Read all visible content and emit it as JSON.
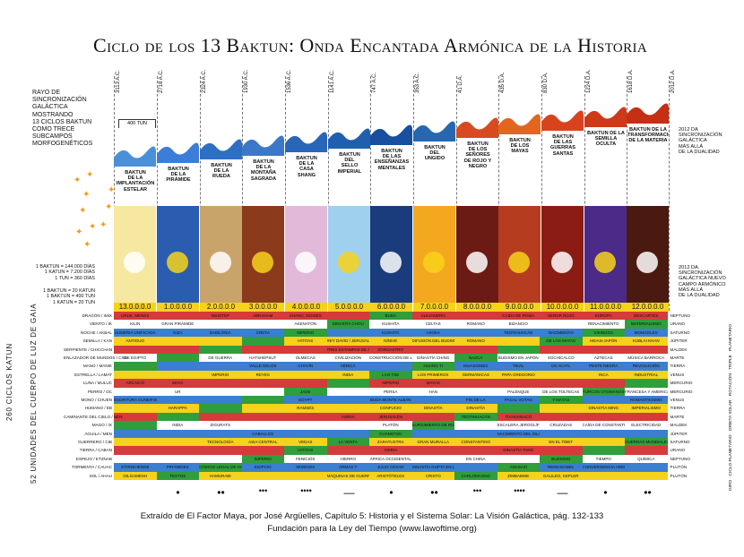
{
  "title": "Ciclo de los 13 Baktun: Onda Encantada Armónica de la Historia",
  "side_note": [
    "RAYO DE",
    "SINCRONIZACIÓN",
    "GALÁCTICA",
    "MOSTRANDO",
    "13 CICLOS BAKTUN",
    "COMO TRECE",
    "SUBCAMPOS",
    "MORFOGENÉTICOS"
  ],
  "scale_top": [
    "1 BAKTUN = 144.000 DÍAS",
    "1 KATUN = 7.200 DÍAS",
    "1 TUN = 360 DÍAS"
  ],
  "scale_bottom": [
    "1 BAKTUN = 20 KATUN",
    "1 BAKTUN = 400 TUN",
    "1 KATUN = 20 TUN"
  ],
  "tun_box": "400 TUN",
  "right_note_top": [
    "2012 DA",
    "SINCRONIZACIÓN",
    "GALÁCTICA",
    "MÁS ALLÁ",
    "DE LA DUALIDAD"
  ],
  "right_note_mid": [
    "2012 DA.",
    "SINCRONIZACIÓN",
    "GALÁCTICA NUEVO",
    "CAMPO ARMÓNICO",
    "MÁS ALLÁ",
    "DE LA DUALIDAD"
  ],
  "vertical_left": "260 CICLOS KATUN",
  "vertical_left2": "52 UNIDADES DEL CUERPO DE LUZ DE GAIA",
  "vertical_right": "GIRO · CICLO PLANETARIO · ORBITA SOLAR · ROTACIÓN · TRIPLE · PLANETARIO",
  "dates": [
    "3113 A.C.",
    "2718 A.C.",
    "2324 A.C.",
    "1930 A.C.",
    "1536 A.C.",
    "1141 A.C.",
    "747 A.C.",
    "353 A.C.",
    "41 D.A.",
    "435 D.A.",
    "830 D.A.",
    "1224 D.A.",
    "1618 D.A.",
    "2012 D.A."
  ],
  "baktuns": [
    {
      "name": [
        "BAKTUN",
        "DE LA",
        "IMPLANTACIÓN",
        "ESTELAR"
      ],
      "num": "13.0.0.0.0",
      "wave": "#4a90d9",
      "bg": "#f6e8a0"
    },
    {
      "name": [
        "BAKTUN",
        "DE LA",
        "PIRÁMIDE"
      ],
      "num": "1.0.0.0.0",
      "wave": "#3b7dd8",
      "bg": "#2a5db0"
    },
    {
      "name": [
        "BAKTUN",
        "DE LA",
        "RUEDA"
      ],
      "num": "2.0.0.0.0",
      "wave": "#2d6fc4",
      "bg": "#c9a46a"
    },
    {
      "name": [
        "BAKTUN",
        "DE LA",
        "MONTAÑA",
        "SAGRADA"
      ],
      "num": "3.0.0.0.0",
      "wave": "#3d78c8",
      "bg": "#8b3a1c"
    },
    {
      "name": [
        "BAKTUN",
        "DE LA",
        "CASA",
        "SHANG"
      ],
      "num": "4.0.0.0.0",
      "wave": "#2a66b8",
      "bg": "#e2b9d8"
    },
    {
      "name": [
        "BAKTUN",
        "DEL",
        "SELLO",
        "IMPERIAL"
      ],
      "num": "5.0.0.0.0",
      "wave": "#1e5fb0",
      "bg": "#9fd0ee"
    },
    {
      "name": [
        "BAKTUN",
        "DE LAS",
        "ENSEÑANZAS",
        "MENTALES"
      ],
      "num": "6.0.0.0.0",
      "wave": "#184f9e",
      "bg": "#1a3c7c"
    },
    {
      "name": [
        "BAKTUN",
        "DEL",
        "UNGIDO"
      ],
      "num": "7.0.0.0.0",
      "wave": "#2766b0",
      "bg": "#f4a820"
    },
    {
      "name": [
        "BAKTUN",
        "DE LOS",
        "SEÑORES",
        "DE ROJO Y NEGRO"
      ],
      "num": "8.0.0.0.0",
      "wave": "#d84a1f",
      "bg": "#6b1a14"
    },
    {
      "name": [
        "BAKTUN",
        "DE LOS",
        "MAYAS"
      ],
      "num": "9.0.0.0.0",
      "wave": "#e2661f",
      "bg": "#b63c20"
    },
    {
      "name": [
        "BAKTUN",
        "DE LAS GUERRAS",
        "SANTAS"
      ],
      "num": "10.0.0.0.0",
      "wave": "#d8431e",
      "bg": "#8a1c14"
    },
    {
      "name": [
        "BAKTUN DE LA",
        "SEMILLA",
        "OCULTA"
      ],
      "num": "11.0.0.0.0",
      "wave": "#cc3a18",
      "bg": "#4b2a88"
    },
    {
      "name": [
        "BAKTUN DE LA",
        "TRANSFORMACIÓN",
        "DE LA MATERIA"
      ],
      "num": "12.0.0.0.0",
      "wave": "#c52f14",
      "bg": "#4a1a10"
    }
  ],
  "days": [
    "DRAGÓN / IMIX",
    "VIENTO / IK",
    "NOCHE / AKBAL",
    "SEMILLA / KAN",
    "SERPIENTE / CHICCHAN",
    "ENLAZADOR DE MUNDOS / CIMI",
    "MANO / MANIK",
    "ESTRELLA / LAMAT",
    "LUNA / MULUC",
    "PERRO / OC",
    "MONO / CHUEN",
    "HUMANO / EB",
    "CAMINANTE DEL CIELO / BEN",
    "MAGO / IX",
    "ÁGUILA / MEN",
    "GUERRERO / CIB",
    "TIERRA / CABAN",
    "ESPEJO / ETZNAB",
    "TORMENTA / CAUAC",
    "SOL / AHAU"
  ],
  "planets": [
    "NEPTUNO",
    "URANO",
    "SATURNO",
    "JÚPITER",
    "MALDEK",
    "MARTE",
    "TIERRA",
    "VENUS",
    "MERCURIO",
    "MERCURIO",
    "VENUS",
    "TIERRA",
    "MARTE",
    "MALDEK",
    "JÚPITER",
    "SATURNO",
    "URANO",
    "NEPTUNO",
    "PLUTÓN",
    "PLUTÓN"
  ],
  "table": [
    [
      "",
      "URUK, MENES",
      "",
      "IMHOTEP",
      "ABRAHAM",
      "SHANG, MOISÉS",
      "",
      "BUDA",
      "ALEJANDRO",
      "",
      "CAIDA DE ROMA",
      "SEÑOR ROJO",
      "EUROPA",
      "DESCARTES"
    ],
    [
      "",
      "KILIN",
      "GRAN PIRÁMIDE",
      "",
      "",
      "AKENATÓN",
      "DINASTÍA CHOU",
      "KUSHITA",
      "CELTAS",
      "ROMANO",
      "BIZANCIO",
      "",
      "RENACIMIENTO",
      "MATERIALISMO"
    ],
    [
      "",
      "SUMERIA UNIFICADA",
      "GIZA",
      "BABILONIA",
      "CRETA",
      "IMPERIO",
      "",
      "KUSHITA",
      "ASOKA",
      "",
      "TEOTIHUACÁN",
      "NACIMIENTO",
      "VIKINGOS",
      "MONGOLES",
      "CIENTÍFICO"
    ],
    [
      "",
      "ANTIGUO",
      "",
      "",
      "",
      "HITITAS",
      "REY DAVID / JERUSALÉN",
      "NÍNIVE",
      "DIFUSIÓN DEL BUDISMO",
      "ROMANO",
      "",
      "DE LOS MAYAS",
      "HEIAN-JAPÓN",
      "KUBLAI KHAN",
      "DINASTÍA CH'ING"
    ],
    [
      "",
      "",
      "",
      "",
      "",
      "",
      "TRES ESTAMPAS DE AHÚ",
      "ZOROASTRO",
      "",
      "",
      "",
      "",
      "",
      "",
      ""
    ],
    [
      "",
      "DE EGIPTO",
      "",
      "DE GUERRA",
      "HATSHEPSUT",
      "OLMECAS",
      "CIVILIZACIÓN",
      "CONSTRUCCIÓN DE LA MURALLA",
      "DINASTÍA CHING",
      "NAZCA",
      "BUDISMO EN JAPÓN",
      "XOCHICALCO",
      "AZTECAS",
      "MÚSICA BARROCA"
    ],
    [
      "",
      "",
      "",
      "",
      "VALLE DELOS",
      "CHAVÍN",
      "VÉDICA",
      "",
      "HUANG TI",
      "INVASIONES",
      "TIKAL",
      "CE ACATL",
      "PESTE NEGRA",
      "REVOLUCIÓN"
    ],
    [
      "",
      "",
      "",
      "IMPERIO",
      "REYES",
      "",
      "INDIA",
      "LAO TSE",
      "LOS PRIMEROS",
      "GERMÁNICAS",
      "PAPA GREGORIO",
      "",
      "INCA",
      "INDUSTRIAL"
    ],
    [
      "",
      "ARCAICO",
      "MAYA",
      "",
      "",
      "",
      "",
      "IMPERIO",
      "MAYAS",
      "",
      "",
      "",
      "",
      ""
    ],
    [
      "",
      "",
      "UR",
      "",
      "",
      "JADE",
      "",
      "PERSA",
      "HAN",
      "",
      "PALENQUE",
      "DE LOS TOLTECAS",
      "TURCOS OTOMANOS",
      "FRANCESA Y AMERICANA"
    ],
    [
      "",
      "ESCRITURA CUNEIFORME",
      "",
      "",
      "",
      "EGYPT",
      "",
      "BUDA MONTE ALBÁN",
      "",
      "FIN DE LA",
      "PACAL VOTAN",
      "Y MAYAS",
      "",
      "ROMANTICISMO"
    ],
    [
      "",
      "",
      "HARAPPA",
      "",
      "",
      "RAMSÉS",
      "",
      "CONFUCIO",
      "DINASTÍA",
      "DINASTÍA",
      "",
      "",
      "DINASTÍA MING",
      "IMPERIALISMO"
    ],
    [
      "",
      "",
      "",
      "",
      "",
      "",
      "ASIRIA",
      "JERUSALÉN",
      "",
      "TEOTIHUACÁN",
      "TIAHUANACO",
      "",
      "",
      ""
    ],
    [
      "",
      "",
      "INDIA",
      "ZIGURATS",
      "",
      "",
      "",
      "PLATÓN",
      "SURGIMIENTO DE ROMA",
      "",
      "ESCALERA JEROGLÍFICA",
      "CRUZADAS",
      "CAÍDA DE CONSTANTINOPLA",
      "ELECTRICIDAD"
    ],
    [
      "",
      "",
      "",
      "",
      "CABALLOS",
      "",
      "",
      "CUANGTZÚ",
      "",
      "",
      "NACIMIENTO DEL ISLAM",
      "",
      "",
      ""
    ],
    [
      "",
      "",
      "",
      "TECNOLOGÍA",
      "ASIA CENTRAL",
      "VEDAS",
      "LA VENTA",
      "ZARATUSTRA",
      "GRAN MURALLA",
      "CONSTANTINO",
      "",
      "EN EL TÍBET",
      "",
      "GUERRAS MUNDIALES"
    ],
    [
      "",
      "",
      "",
      "",
      "",
      "HITITAS",
      "",
      "ASIRIA",
      "",
      "",
      "DINASTÍA TANG",
      "",
      "",
      ""
    ],
    [
      "",
      "",
      "",
      "",
      "IMPERIO",
      "FENICIOS",
      "HIERRO",
      "ÁFRICA OCCIDENTAL",
      "",
      "EN CHINA",
      "",
      "BUDISMO",
      "TIEMPO",
      "QUÍMICA"
    ],
    [
      "",
      "STONEHENGE",
      "PIRÁMIDES",
      "CÓDIGO LEGAL DE HAMURABI",
      "EGIPCIO",
      "MISENOS",
      "ARMAS Y",
      "JULIO CÉSAR",
      "DINASTÍA GUPTA EN LA INDIA",
      "",
      "ANASAZI",
      "REINAISABEL",
      "CONVERGENCIA ARMÓNICA",
      ""
    ],
    [
      "",
      "GILGAMESH",
      "TEXTOS",
      "HAMURABI",
      "",
      "",
      "MÁQUINAS DE GUERRA",
      "ARISTÓTELES",
      "CRISTO",
      "CARLOMAGNO",
      "ZIMBABWE",
      "GALILEO, KEPLER",
      "",
      ""
    ]
  ],
  "row_colors": [
    "#d63a3a",
    "#ffffff",
    "#3a7fd0",
    "#f5d21b",
    "#d63a3a",
    "#ffffff",
    "#3a7fd0",
    "#f5d21b",
    "#d63a3a",
    "#ffffff",
    "#3a7fd0",
    "#f5d21b",
    "#d63a3a",
    "#ffffff",
    "#3a7fd0",
    "#f5d21b",
    "#d63a3a",
    "#ffffff",
    "#3a7fd0",
    "#f5d21b"
  ],
  "green": "#2f9e3b",
  "numerals": [
    "•",
    "••",
    "•••",
    "••••",
    "—",
    "•",
    "••",
    "•••",
    "••••",
    "—",
    "•",
    "••"
  ],
  "footer_line1": "Extraído de El Factor Maya, por José Argüelles, Capítulo 5: Historia y el Sistema Solar: La Visión Galáctica, pág. 132-133",
  "footer_line2": "Fundación para la Ley del Tiempo (www.lawoftime.org)"
}
